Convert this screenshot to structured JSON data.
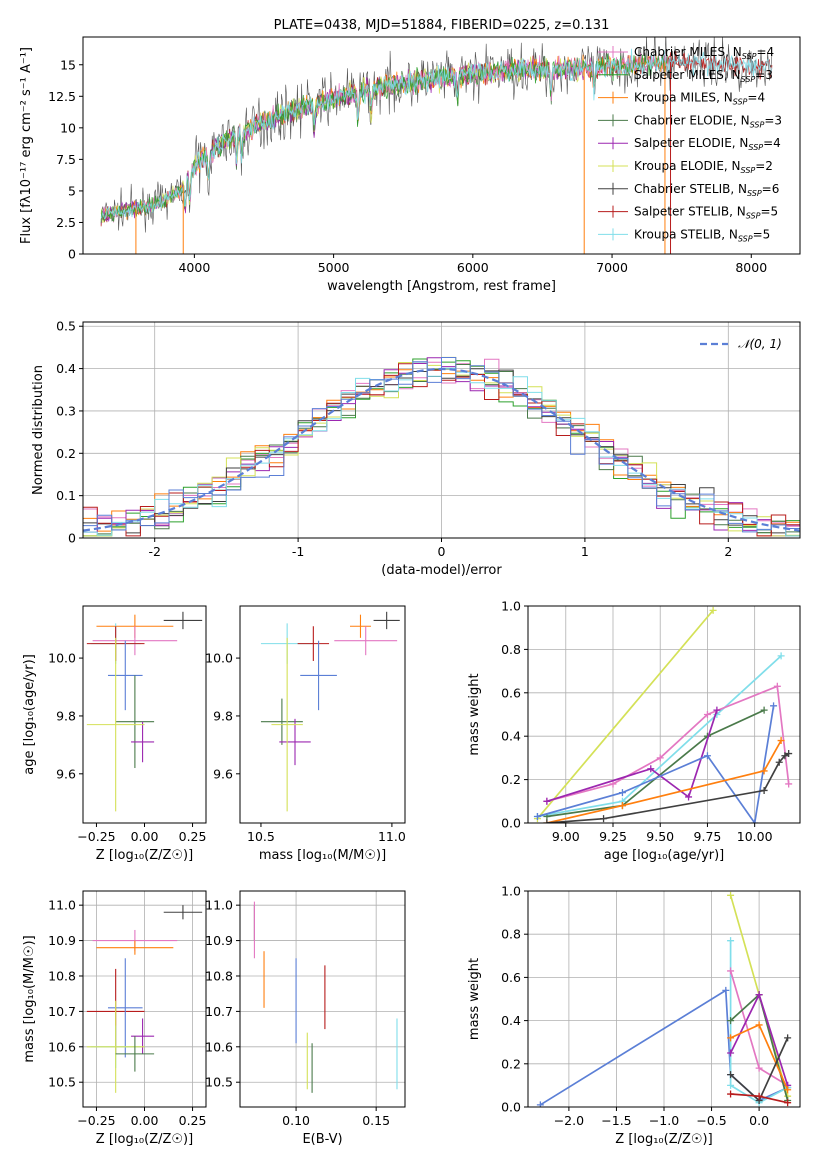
{
  "colors": {
    "Chabrier MILES": "#e377c2",
    "Salpeter MILES": "#2ca02c",
    "Kroupa MILES": "#ff7f0e",
    "Chabrier ELODIE": "#4a7a4a",
    "Salpeter ELODIE": "#9c27b0",
    "Kroupa ELODIE": "#d4e157",
    "Chabrier STELIB": "#404040",
    "Salpeter STELIB": "#b71c1c",
    "Kroupa STELIB": "#80deea",
    "blue": "#5b7fd6"
  },
  "chart_data": [
    {
      "id": "spectrum",
      "type": "line",
      "title": "PLATE=0438, MJD=51884, FIBERID=0225, z=0.131",
      "xlabel": "wavelength [Angstrom, rest frame]",
      "ylabel": "Flux [fλ10⁻¹⁷ erg cm⁻² s⁻¹ A⁻¹]",
      "xlim": [
        3200,
        8350
      ],
      "ylim": [
        0,
        17.2
      ],
      "xticks": [
        4000,
        5000,
        6000,
        7000,
        8000
      ],
      "yticks": [
        0.0,
        2.5,
        5.0,
        7.5,
        10.0,
        12.5,
        15.0
      ],
      "grid": false,
      "legend_position": "top-right",
      "legend": [
        {
          "name": "Chabrier MILES",
          "nssp": "4"
        },
        {
          "name": "Salpeter MILES",
          "nssp": "3"
        },
        {
          "name": "Kroupa MILES",
          "nssp": "4"
        },
        {
          "name": "Chabrier ELODIE",
          "nssp": "3"
        },
        {
          "name": "Salpeter ELODIE",
          "nssp": "4"
        },
        {
          "name": "Kroupa ELODIE",
          "nssp": "2"
        },
        {
          "name": "Chabrier STELIB",
          "nssp": "6"
        },
        {
          "name": "Salpeter STELIB",
          "nssp": "5"
        },
        {
          "name": "Kroupa STELIB",
          "nssp": "5"
        }
      ],
      "continuum": {
        "x": [
          3330,
          3500,
          3700,
          3900,
          4000,
          4200,
          4500,
          4800,
          5000,
          5300,
          5600,
          6000,
          6300,
          6600,
          6900,
          7200,
          7500,
          7800,
          8150
        ],
        "y": [
          3.0,
          3.5,
          3.8,
          5.0,
          7.0,
          8.8,
          10.5,
          11.7,
          12.3,
          13.2,
          13.7,
          14.3,
          14.6,
          14.7,
          14.8,
          15.0,
          15.3,
          15.0,
          14.8
        ]
      }
    },
    {
      "id": "residuals",
      "type": "bar",
      "xlabel": "(data-model)/error",
      "ylabel": "Normed distribution",
      "xlim": [
        -2.5,
        2.5
      ],
      "ylim": [
        0,
        0.51
      ],
      "xticks": [
        -2,
        -1,
        0,
        1,
        2
      ],
      "yticks": [
        0.0,
        0.1,
        0.2,
        0.3,
        0.4,
        0.5
      ],
      "grid": true,
      "legend_position": "top-right",
      "legend": "𝒩(0, 1)",
      "bin_width": 0.1
    },
    {
      "id": "age-vs-Z",
      "type": "scatter",
      "xlabel": "Z [log₁₀(Z/Z☉)]",
      "ylabel": "age  [log₁₀(age/yr)]",
      "xlim": [
        -0.32,
        0.32
      ],
      "ylim": [
        9.43,
        10.18
      ],
      "xticks": [
        "−0.25",
        "0.00",
        "0.25"
      ],
      "yticks": [
        "9.6",
        "9.8",
        "10.0"
      ],
      "grid": false,
      "points": [
        {
          "series": "Chabrier STELIB",
          "x": 0.2,
          "y": 10.13,
          "xerr": 0.1,
          "yerr": 0.03
        },
        {
          "series": "Kroupa MILES",
          "x": -0.05,
          "y": 10.11,
          "xerr": 0.2,
          "yerr": 0.04
        },
        {
          "series": "Chabrier MILES",
          "x": -0.05,
          "y": 10.06,
          "xerr": 0.22,
          "yerr": 0.05
        },
        {
          "series": "Kroupa STELIB",
          "x": -0.15,
          "y": 10.05,
          "xerr": 0.13,
          "yerr": 0.07
        },
        {
          "series": "Salpeter STELIB",
          "x": -0.15,
          "y": 10.05,
          "xerr": 0.15,
          "yerr": 0.06
        },
        {
          "series": "blue",
          "x": -0.1,
          "y": 9.94,
          "xerr": 0.09,
          "yerr": 0.12
        },
        {
          "series": "Chabrier ELODIE",
          "x": -0.05,
          "y": 9.78,
          "xerr": 0.1,
          "yerr": 0.16
        },
        {
          "series": "Salpeter ELODIE",
          "x": -0.01,
          "y": 9.71,
          "xerr": 0.06,
          "yerr": 0.07
        },
        {
          "series": "Kroupa ELODIE",
          "x": -0.15,
          "y": 9.77,
          "xerr": 0.15,
          "yerr": 0.3
        }
      ]
    },
    {
      "id": "age-vs-mass",
      "type": "scatter",
      "xlabel": "mass [log₁₀(M/M☉)]",
      "ylabel": "",
      "xlim": [
        10.42,
        11.05
      ],
      "ylim": [
        9.43,
        10.18
      ],
      "xticks": [
        "10.5",
        "11.0"
      ],
      "yticks": [
        "9.6",
        "9.8",
        "10.0"
      ],
      "grid": false,
      "points": [
        {
          "series": "Chabrier STELIB",
          "x": 10.98,
          "y": 10.13,
          "xerr": 0.05,
          "yerr": 0.03
        },
        {
          "series": "Kroupa MILES",
          "x": 10.88,
          "y": 10.11,
          "xerr": 0.04,
          "yerr": 0.04
        },
        {
          "series": "Chabrier MILES",
          "x": 10.9,
          "y": 10.06,
          "xerr": 0.12,
          "yerr": 0.05
        },
        {
          "series": "Kroupa STELIB",
          "x": 10.6,
          "y": 10.05,
          "xerr": 0.1,
          "yerr": 0.07
        },
        {
          "series": "Salpeter STELIB",
          "x": 10.7,
          "y": 10.05,
          "xerr": 0.06,
          "yerr": 0.06
        },
        {
          "series": "blue",
          "x": 10.72,
          "y": 9.94,
          "xerr": 0.07,
          "yerr": 0.12
        },
        {
          "series": "Chabrier ELODIE",
          "x": 10.58,
          "y": 9.78,
          "xerr": 0.08,
          "yerr": 0.08
        },
        {
          "series": "Salpeter ELODIE",
          "x": 10.63,
          "y": 9.71,
          "xerr": 0.06,
          "yerr": 0.08
        },
        {
          "series": "Kroupa ELODIE",
          "x": 10.6,
          "y": 9.77,
          "xerr": 0.06,
          "yerr": 0.3
        }
      ]
    },
    {
      "id": "weight-vs-age",
      "type": "line",
      "xlabel": "age  [log₁₀(age/yr)]",
      "ylabel": "mass weight",
      "xlim": [
        8.8,
        10.24
      ],
      "ylim": [
        0,
        1.0
      ],
      "xticks": [
        "9.00",
        "9.25",
        "9.50",
        "9.75",
        "10.00"
      ],
      "yticks": [
        "0.0",
        "0.2",
        "0.4",
        "0.6",
        "0.8",
        "1.0"
      ],
      "grid": true,
      "series": [
        {
          "series": "Kroupa ELODIE",
          "x": [
            8.85,
            9.78
          ],
          "y": [
            0.02,
            0.98
          ]
        },
        {
          "series": "Kroupa STELIB",
          "x": [
            8.85,
            9.3,
            9.8,
            10.14
          ],
          "y": [
            0.03,
            0.1,
            0.5,
            0.77
          ]
        },
        {
          "series": "Chabrier MILES",
          "x": [
            8.9,
            9.25,
            9.5,
            9.75,
            10.12,
            10.18
          ],
          "y": [
            0.1,
            0.18,
            0.3,
            0.5,
            0.63,
            0.18
          ]
        },
        {
          "series": "Chabrier ELODIE",
          "x": [
            8.9,
            9.3,
            9.75,
            10.05
          ],
          "y": [
            0.03,
            0.08,
            0.4,
            0.52
          ]
        },
        {
          "series": "Salpeter ELODIE",
          "x": [
            8.9,
            9.45,
            9.65,
            9.8
          ],
          "y": [
            0.1,
            0.25,
            0.12,
            0.52
          ]
        },
        {
          "series": "blue",
          "x": [
            8.85,
            9.3,
            9.75,
            10.0,
            10.1
          ],
          "y": [
            0.03,
            0.14,
            0.31,
            0.0,
            0.54
          ]
        },
        {
          "series": "Kroupa MILES",
          "x": [
            8.9,
            9.3,
            10.05,
            10.14
          ],
          "y": [
            0.0,
            0.08,
            0.24,
            0.38
          ]
        },
        {
          "series": "Chabrier STELIB",
          "x": [
            8.9,
            9.2,
            10.05,
            10.13,
            10.16,
            10.18
          ],
          "y": [
            0.0,
            0.02,
            0.15,
            0.28,
            0.31,
            0.32
          ]
        }
      ]
    },
    {
      "id": "mass-vs-Z",
      "type": "scatter",
      "xlabel": "Z [log₁₀(Z/Z☉)]",
      "ylabel": "mass [log₁₀(M/M☉)]",
      "xlim": [
        -0.32,
        0.32
      ],
      "ylim": [
        10.43,
        11.04
      ],
      "xticks": [
        "−0.25",
        "0.00",
        "0.25"
      ],
      "yticks": [
        "10.5",
        "10.6",
        "10.7",
        "10.8",
        "10.9",
        "11.0"
      ],
      "grid": true,
      "points": [
        {
          "series": "Chabrier STELIB",
          "x": 0.2,
          "y": 10.98,
          "xerr": 0.1,
          "yerr": 0.02
        },
        {
          "series": "Chabrier MILES",
          "x": -0.05,
          "y": 10.9,
          "xerr": 0.22,
          "yerr": 0.03
        },
        {
          "series": "Kroupa MILES",
          "x": -0.05,
          "y": 10.88,
          "xerr": 0.2,
          "yerr": 0.02
        },
        {
          "series": "Salpeter STELIB",
          "x": -0.15,
          "y": 10.7,
          "xerr": 0.15,
          "yerr": 0.12
        },
        {
          "series": "blue",
          "x": -0.1,
          "y": 10.71,
          "xerr": 0.09,
          "yerr": 0.14
        },
        {
          "series": "Salpeter ELODIE",
          "x": -0.01,
          "y": 10.63,
          "xerr": 0.06,
          "yerr": 0.05
        },
        {
          "series": "Kroupa STELIB",
          "x": -0.15,
          "y": 10.6,
          "xerr": 0.13,
          "yerr": 0.06
        },
        {
          "series": "Kroupa ELODIE",
          "x": -0.15,
          "y": 10.6,
          "xerr": 0.15,
          "yerr": 0.13
        },
        {
          "series": "Chabrier ELODIE",
          "x": -0.05,
          "y": 10.58,
          "xerr": 0.1,
          "yerr": 0.05
        }
      ]
    },
    {
      "id": "mass-vs-EBV",
      "type": "scatter",
      "xlabel": "E(B-V)",
      "ylabel": "",
      "xlim": [
        0.065,
        0.168
      ],
      "ylim": [
        10.43,
        11.04
      ],
      "xticks": [
        "0.10",
        "0.15"
      ],
      "yticks": [
        "10.5",
        "10.6",
        "10.7",
        "10.8",
        "10.9",
        "11.0"
      ],
      "grid": true,
      "points": [
        {
          "series": "Chabrier STELIB",
          "x": 0.074,
          "y": 10.95,
          "xerr": 0.0,
          "yerr": 0.05
        },
        {
          "series": "Chabrier MILES",
          "x": 0.074,
          "y": 10.93,
          "xerr": 0.0,
          "yerr": 0.08
        },
        {
          "series": "Kroupa MILES",
          "x": 0.08,
          "y": 10.79,
          "xerr": 0.0,
          "yerr": 0.08
        },
        {
          "series": "blue",
          "x": 0.1,
          "y": 10.73,
          "xerr": 0.0,
          "yerr": 0.12
        },
        {
          "series": "Salpeter STELIB",
          "x": 0.118,
          "y": 10.74,
          "xerr": 0.0,
          "yerr": 0.09
        },
        {
          "series": "Kroupa ELODIE",
          "x": 0.107,
          "y": 10.56,
          "xerr": 0.0,
          "yerr": 0.08
        },
        {
          "series": "Chabrier ELODIE",
          "x": 0.11,
          "y": 10.54,
          "xerr": 0.0,
          "yerr": 0.07
        },
        {
          "series": "Kroupa STELIB",
          "x": 0.163,
          "y": 10.58,
          "xerr": 0.0,
          "yerr": 0.1
        }
      ]
    },
    {
      "id": "weight-vs-Z",
      "type": "line",
      "xlabel": "Z [log₁₀(Z/Z☉)]",
      "ylabel": "mass weight",
      "xlim": [
        -2.43,
        0.43
      ],
      "ylim": [
        0,
        1.0
      ],
      "xticks": [
        "−2.0",
        "−1.5",
        "−1.0",
        "−0.5",
        "0.0"
      ],
      "yticks": [
        "0.0",
        "0.2",
        "0.4",
        "0.6",
        "0.8",
        "1.0"
      ],
      "grid": true,
      "series": [
        {
          "series": "blue",
          "x": [
            -2.3,
            -0.35,
            -0.3,
            0.0,
            0.3
          ],
          "y": [
            0.01,
            0.54,
            0.15,
            0.03,
            0.09
          ]
        },
        {
          "series": "Kroupa ELODIE",
          "x": [
            -0.3,
            0.0,
            0.3
          ],
          "y": [
            0.98,
            0.52,
            0.05
          ]
        },
        {
          "series": "Kroupa STELIB",
          "x": [
            -0.3,
            -0.3,
            0.0,
            0.3
          ],
          "y": [
            0.77,
            0.1,
            0.02,
            0.09
          ]
        },
        {
          "series": "Chabrier MILES",
          "x": [
            -0.3,
            0.0,
            0.3
          ],
          "y": [
            0.63,
            0.18,
            0.1
          ]
        },
        {
          "series": "Chabrier ELODIE",
          "x": [
            -0.3,
            0.0,
            0.3
          ],
          "y": [
            0.4,
            0.52,
            0.03
          ]
        },
        {
          "series": "Salpeter ELODIE",
          "x": [
            -0.3,
            0.0,
            0.3
          ],
          "y": [
            0.25,
            0.52,
            0.1
          ]
        },
        {
          "series": "Kroupa MILES",
          "x": [
            -0.3,
            0.0,
            0.3
          ],
          "y": [
            0.32,
            0.38,
            0.08
          ]
        },
        {
          "series": "Chabrier STELIB",
          "x": [
            -0.3,
            0.0,
            0.3
          ],
          "y": [
            0.15,
            0.03,
            0.32
          ]
        },
        {
          "series": "Salpeter STELIB",
          "x": [
            -0.3,
            0.0,
            0.3
          ],
          "y": [
            0.06,
            0.05,
            0.02
          ]
        }
      ]
    }
  ]
}
